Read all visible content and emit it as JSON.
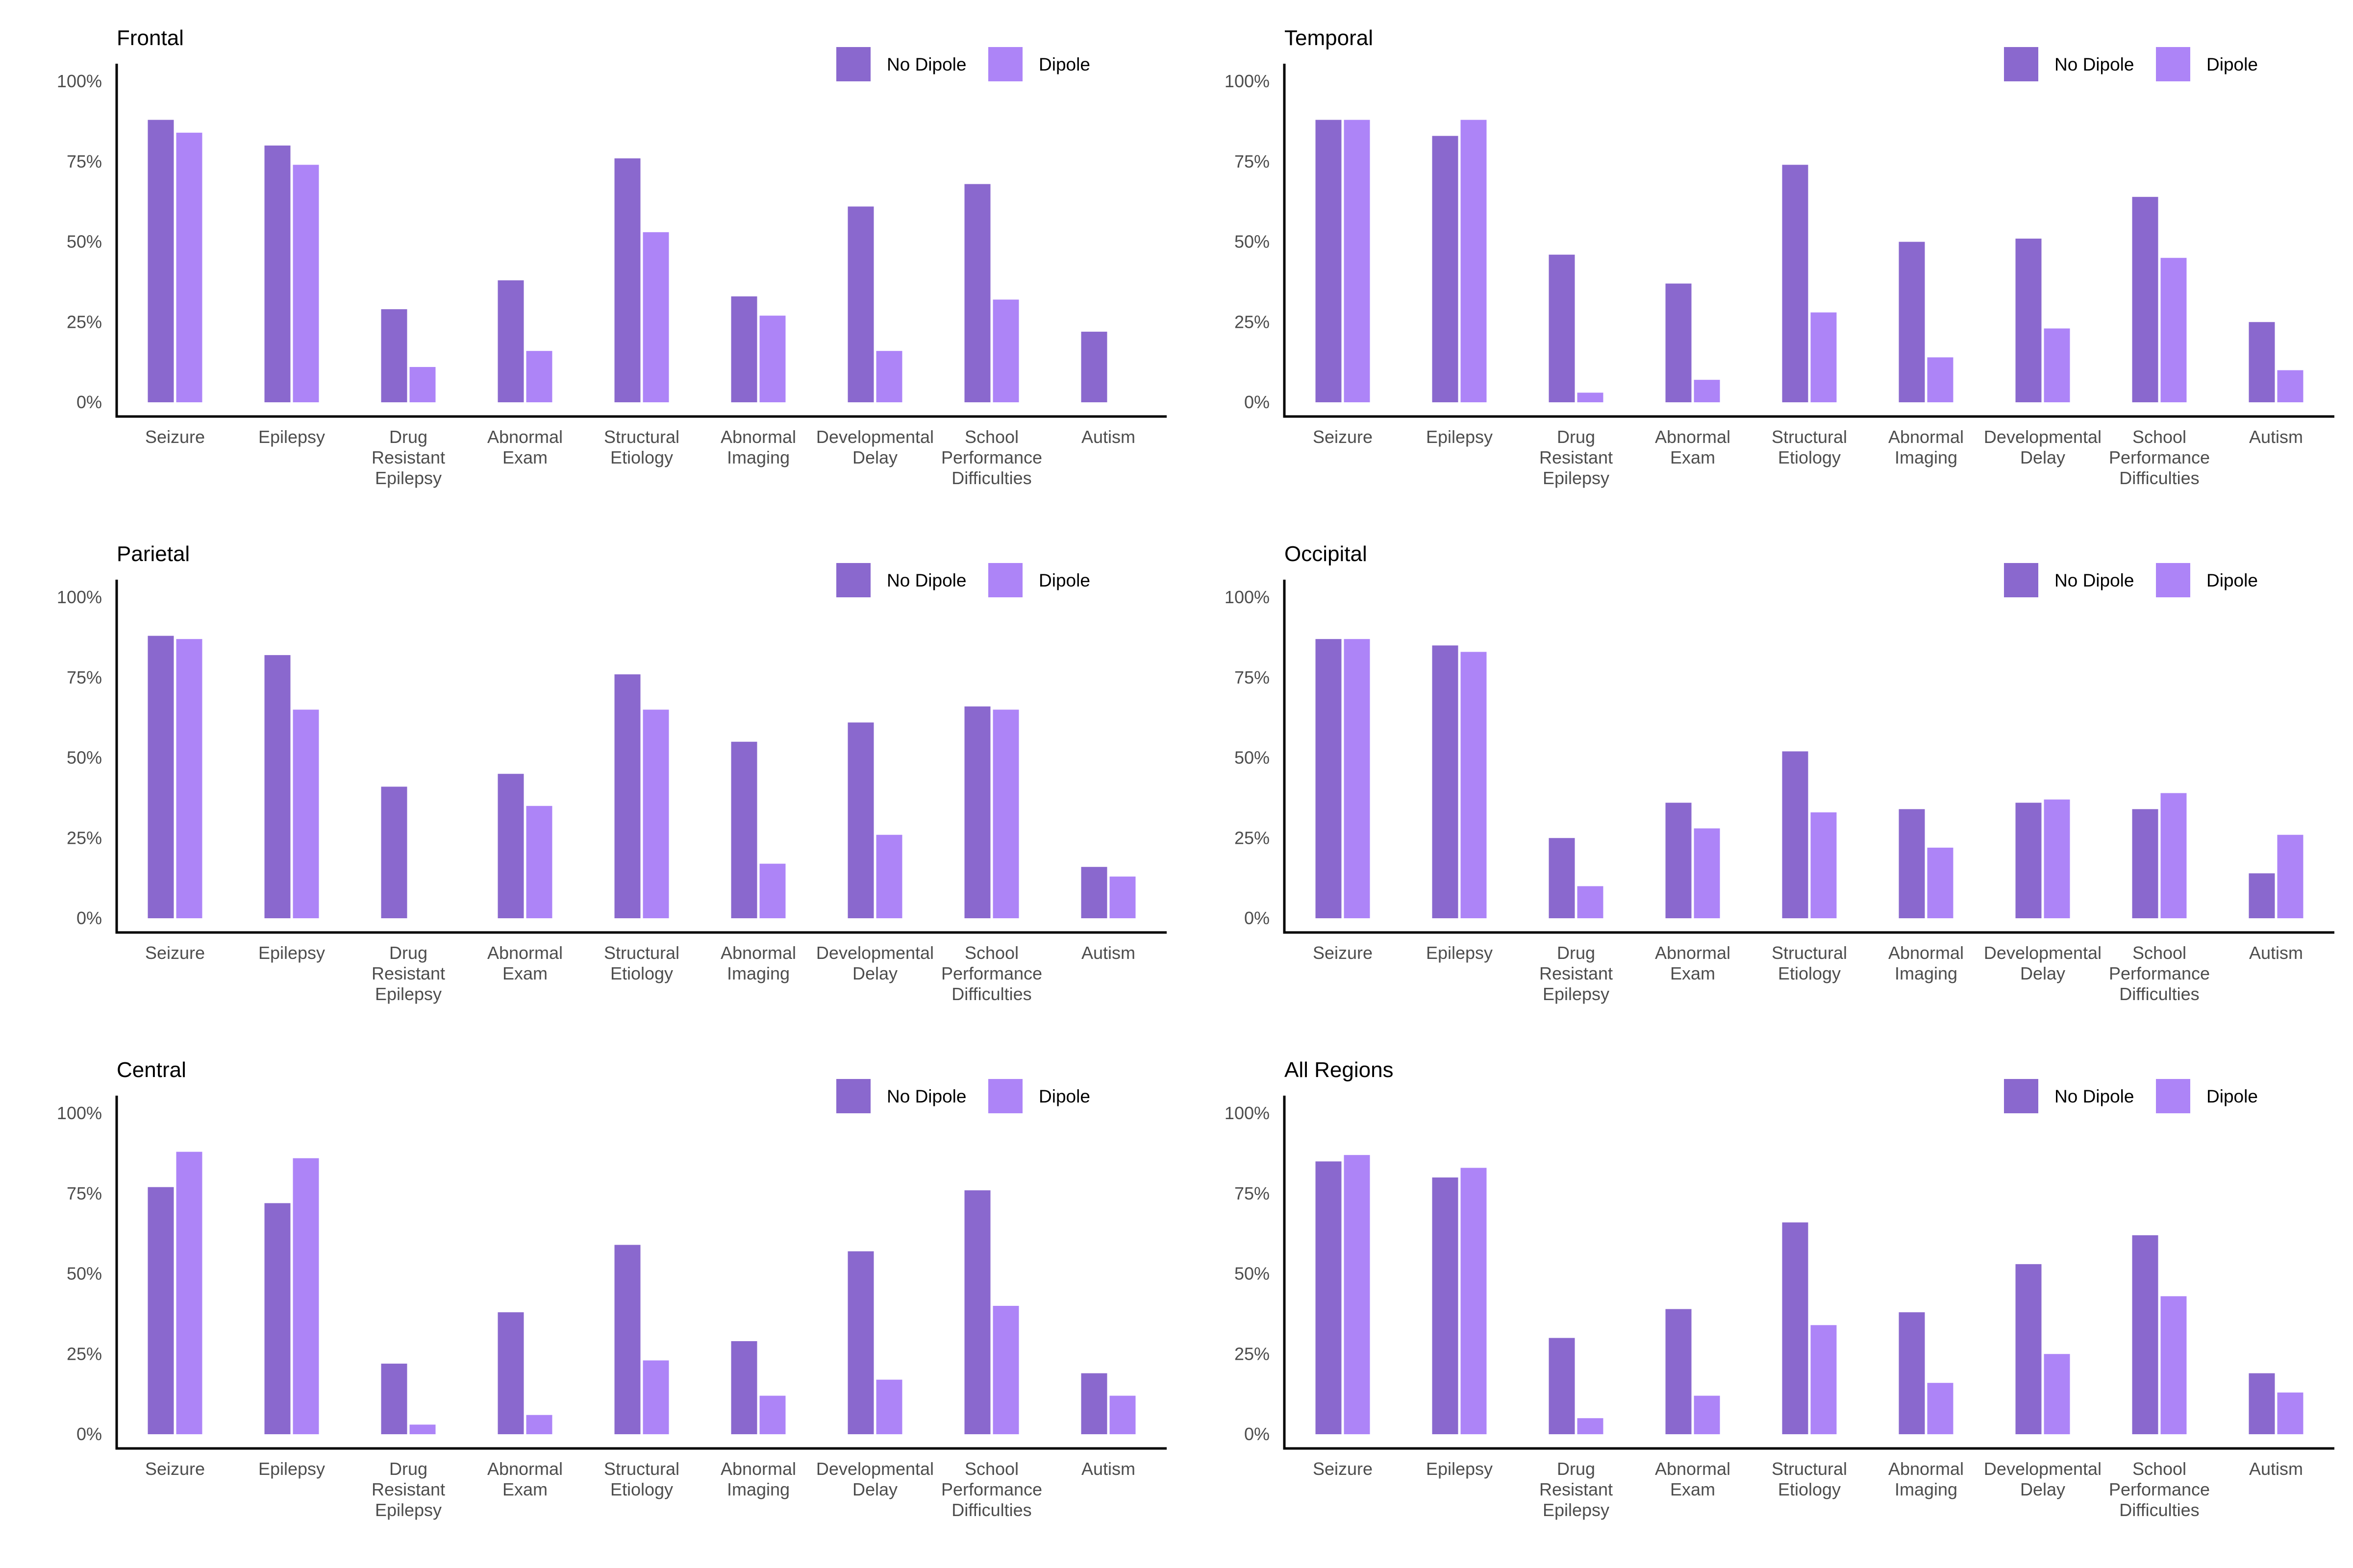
{
  "colors": {
    "no_dipole": "#8a68ce",
    "dipole": "#ad84f7"
  },
  "legend": {
    "no_dipole_label": "No Dipole",
    "dipole_label": "Dipole"
  },
  "y_tick_labels": [
    "0%",
    "25%",
    "50%",
    "75%",
    "100%"
  ],
  "chart_data": [
    {
      "type": "bar",
      "title": "Frontal",
      "categories": [
        [
          "Seizure"
        ],
        [
          "Epilepsy"
        ],
        [
          "Drug",
          "Resistant",
          "Epilepsy"
        ],
        [
          "Abnormal",
          "Exam"
        ],
        [
          "Structural",
          "Etiology"
        ],
        [
          "Abnormal",
          "Imaging"
        ],
        [
          "Developmental",
          "Delay"
        ],
        [
          "School",
          "Performance",
          "Difficulties"
        ],
        [
          "Autism"
        ]
      ],
      "series": [
        {
          "name": "No Dipole",
          "values": [
            88,
            80,
            29,
            38,
            76,
            33,
            61,
            68,
            22
          ]
        },
        {
          "name": "Dipole",
          "values": [
            84,
            74,
            11,
            16,
            53,
            27,
            16,
            32,
            0
          ]
        }
      ],
      "ylim": [
        0,
        100
      ],
      "ylabel": "",
      "xlabel": ""
    },
    {
      "type": "bar",
      "title": "Temporal",
      "categories": [
        [
          "Seizure"
        ],
        [
          "Epilepsy"
        ],
        [
          "Drug",
          "Resistant",
          "Epilepsy"
        ],
        [
          "Abnormal",
          "Exam"
        ],
        [
          "Structural",
          "Etiology"
        ],
        [
          "Abnormal",
          "Imaging"
        ],
        [
          "Developmental",
          "Delay"
        ],
        [
          "School",
          "Performance",
          "Difficulties"
        ],
        [
          "Autism"
        ]
      ],
      "series": [
        {
          "name": "No Dipole",
          "values": [
            88,
            83,
            46,
            37,
            74,
            50,
            51,
            64,
            25
          ]
        },
        {
          "name": "Dipole",
          "values": [
            88,
            88,
            3,
            7,
            28,
            14,
            23,
            45,
            10
          ]
        }
      ],
      "ylim": [
        0,
        100
      ],
      "ylabel": "",
      "xlabel": ""
    },
    {
      "type": "bar",
      "title": "Parietal",
      "categories": [
        [
          "Seizure"
        ],
        [
          "Epilepsy"
        ],
        [
          "Drug",
          "Resistant",
          "Epilepsy"
        ],
        [
          "Abnormal",
          "Exam"
        ],
        [
          "Structural",
          "Etiology"
        ],
        [
          "Abnormal",
          "Imaging"
        ],
        [
          "Developmental",
          "Delay"
        ],
        [
          "School",
          "Performance",
          "Difficulties"
        ],
        [
          "Autism"
        ]
      ],
      "series": [
        {
          "name": "No Dipole",
          "values": [
            88,
            82,
            41,
            45,
            76,
            55,
            61,
            66,
            16
          ]
        },
        {
          "name": "Dipole",
          "values": [
            87,
            65,
            0,
            35,
            65,
            17,
            26,
            65,
            13
          ]
        }
      ],
      "ylim": [
        0,
        100
      ],
      "ylabel": "",
      "xlabel": ""
    },
    {
      "type": "bar",
      "title": "Occipital",
      "categories": [
        [
          "Seizure"
        ],
        [
          "Epilepsy"
        ],
        [
          "Drug",
          "Resistant",
          "Epilepsy"
        ],
        [
          "Abnormal",
          "Exam"
        ],
        [
          "Structural",
          "Etiology"
        ],
        [
          "Abnormal",
          "Imaging"
        ],
        [
          "Developmental",
          "Delay"
        ],
        [
          "School",
          "Performance",
          "Difficulties"
        ],
        [
          "Autism"
        ]
      ],
      "series": [
        {
          "name": "No Dipole",
          "values": [
            87,
            85,
            25,
            36,
            52,
            34,
            36,
            34,
            14
          ]
        },
        {
          "name": "Dipole",
          "values": [
            87,
            83,
            10,
            28,
            33,
            22,
            37,
            39,
            26
          ]
        }
      ],
      "ylim": [
        0,
        100
      ],
      "ylabel": "",
      "xlabel": ""
    },
    {
      "type": "bar",
      "title": "Central",
      "categories": [
        [
          "Seizure"
        ],
        [
          "Epilepsy"
        ],
        [
          "Drug",
          "Resistant",
          "Epilepsy"
        ],
        [
          "Abnormal",
          "Exam"
        ],
        [
          "Structural",
          "Etiology"
        ],
        [
          "Abnormal",
          "Imaging"
        ],
        [
          "Developmental",
          "Delay"
        ],
        [
          "School",
          "Performance",
          "Difficulties"
        ],
        [
          "Autism"
        ]
      ],
      "series": [
        {
          "name": "No Dipole",
          "values": [
            77,
            72,
            22,
            38,
            59,
            29,
            57,
            76,
            19
          ]
        },
        {
          "name": "Dipole",
          "values": [
            88,
            86,
            3,
            6,
            23,
            12,
            17,
            40,
            12
          ]
        }
      ],
      "ylim": [
        0,
        100
      ],
      "ylabel": "",
      "xlabel": ""
    },
    {
      "type": "bar",
      "title": "All Regions",
      "categories": [
        [
          "Seizure"
        ],
        [
          "Epilepsy"
        ],
        [
          "Drug",
          "Resistant",
          "Epilepsy"
        ],
        [
          "Abnormal",
          "Exam"
        ],
        [
          "Structural",
          "Etiology"
        ],
        [
          "Abnormal",
          "Imaging"
        ],
        [
          "Developmental",
          "Delay"
        ],
        [
          "School",
          "Performance",
          "Difficulties"
        ],
        [
          "Autism"
        ]
      ],
      "series": [
        {
          "name": "No Dipole",
          "values": [
            85,
            80,
            30,
            39,
            66,
            38,
            53,
            62,
            19
          ]
        },
        {
          "name": "Dipole",
          "values": [
            87,
            83,
            5,
            12,
            34,
            16,
            25,
            43,
            13
          ]
        }
      ],
      "ylim": [
        0,
        100
      ],
      "ylabel": "",
      "xlabel": ""
    }
  ]
}
